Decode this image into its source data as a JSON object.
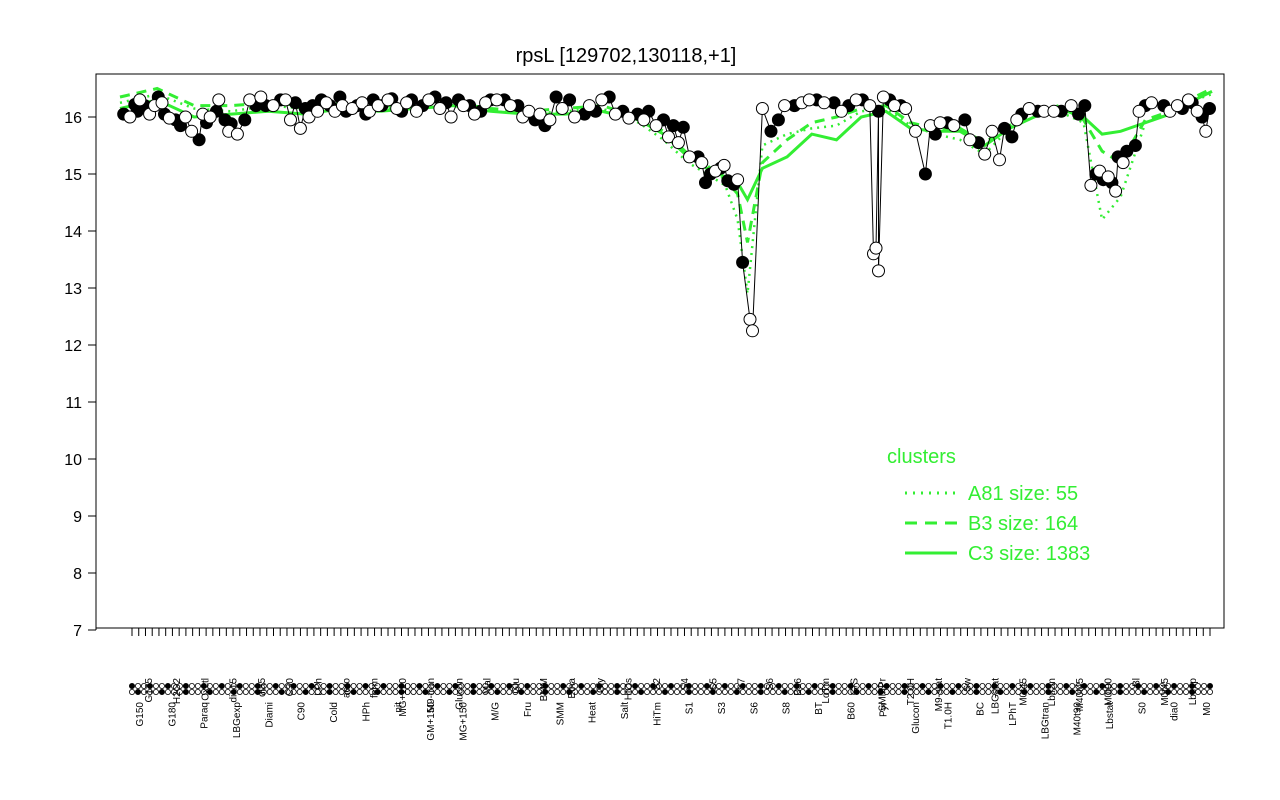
{
  "chart_data": {
    "type": "line",
    "title": "rpsL [129702,130118,+1]",
    "xlabel": "",
    "ylabel": "",
    "ylim": [
      7,
      16.6
    ],
    "y_ticks": [
      7,
      8,
      9,
      10,
      11,
      12,
      13,
      14,
      15,
      16
    ],
    "grid": false,
    "legend": {
      "title": "clusters",
      "placement": "bottom-right",
      "color": "#33ee33",
      "entries": [
        {
          "label": "A81 size: 55",
          "style": "dotted"
        },
        {
          "label": "B3 size: 164",
          "style": "dashed"
        },
        {
          "label": "C3 size: 1383",
          "style": "solid"
        }
      ]
    },
    "x_tick_labels_top": [
      "G135",
      "H2O2",
      "Oxctl",
      "dia15",
      "dia5",
      "C30",
      "LPh",
      "aero",
      "ferm",
      "MG+120",
      "M9-tran",
      "Glucon",
      "Mal",
      "Glu",
      "BMM",
      "Etha",
      "Gly",
      "HiOs",
      "S2",
      "S4",
      "S5",
      "S7",
      "S6",
      "B36",
      "LoTm",
      "G/S",
      "SMMPr",
      "T2.0H",
      "M9-stat",
      "Sw",
      "LBGstat",
      "M0t45",
      "Lbtran",
      "M40t45",
      "M0t90",
      "Bl",
      "M0t45",
      "Lbexp"
    ],
    "x_tick_labels_bottom": [
      "G150",
      "G180",
      "Paraq",
      "LBGexp",
      "Diami",
      "C90",
      "Cold",
      "HPh",
      "nit",
      "GM+150",
      "MG+150",
      "M/G",
      "Fru",
      "SMM",
      "Heat",
      "Salt",
      "HiTm",
      "S1",
      "S3",
      "S6",
      "S8",
      "BT",
      "B60",
      "Pyr",
      "Glucon",
      "T1.0H",
      "BC",
      "LPhT",
      "LBGtran",
      "M40t90",
      "Lbstat",
      "S0",
      "dia0",
      "M0"
    ],
    "series": [
      {
        "name": "",
        "marker": "filled",
        "values": [
          [
            3,
            16.05
          ],
          [
            12,
            16.22
          ],
          [
            14,
            16.1
          ],
          [
            20,
            16.2
          ],
          [
            31,
            16.35
          ],
          [
            36,
            16.05
          ],
          [
            45,
            15.95
          ],
          [
            49,
            15.85
          ],
          [
            64,
            15.6
          ],
          [
            70,
            15.9
          ],
          [
            78,
            16.1
          ],
          [
            85,
            15.95
          ],
          [
            90,
            15.88
          ],
          [
            101,
            15.95
          ],
          [
            110,
            16.2
          ],
          [
            118,
            16.2
          ],
          [
            130,
            16.3
          ],
          [
            142,
            16.25
          ],
          [
            150,
            16.15
          ],
          [
            156,
            16.2
          ],
          [
            163,
            16.3
          ],
          [
            170,
            16.2
          ],
          [
            178,
            16.35
          ],
          [
            183,
            16.1
          ],
          [
            192,
            16.2
          ],
          [
            199,
            16.05
          ],
          [
            205,
            16.3
          ],
          [
            212,
            16.2
          ],
          [
            220,
            16.32
          ],
          [
            228,
            16.1
          ],
          [
            236,
            16.3
          ],
          [
            245,
            16.2
          ],
          [
            255,
            16.35
          ],
          [
            264,
            16.25
          ],
          [
            274,
            16.3
          ],
          [
            283,
            16.2
          ],
          [
            292,
            16.1
          ],
          [
            300,
            16.3
          ],
          [
            311,
            16.3
          ],
          [
            322,
            16.2
          ],
          [
            336,
            15.95
          ],
          [
            344,
            15.85
          ],
          [
            353,
            16.35
          ],
          [
            364,
            16.3
          ],
          [
            376,
            16.05
          ],
          [
            385,
            16.1
          ],
          [
            396,
            16.35
          ],
          [
            407,
            16.1
          ],
          [
            419,
            16.05
          ],
          [
            428,
            16.1
          ],
          [
            440,
            15.95
          ],
          [
            448,
            15.85
          ],
          [
            456,
            15.82
          ],
          [
            468,
            15.3
          ],
          [
            474,
            14.85
          ],
          [
            478,
            15.0
          ],
          [
            486,
            15.1
          ],
          [
            492,
            14.88
          ],
          [
            497,
            14.82
          ],
          [
            504,
            13.45
          ],
          [
            527,
            15.75
          ],
          [
            533,
            15.95
          ],
          [
            546,
            16.2
          ],
          [
            564,
            16.3
          ],
          [
            578,
            16.25
          ],
          [
            590,
            16.2
          ],
          [
            601,
            16.3
          ],
          [
            614,
            16.1
          ],
          [
            623,
            16.3
          ],
          [
            632,
            16.2
          ],
          [
            652,
            15.0
          ],
          [
            660,
            15.7
          ],
          [
            670,
            15.9
          ],
          [
            684,
            15.95
          ],
          [
            695,
            15.55
          ],
          [
            716,
            15.8
          ],
          [
            722,
            15.65
          ],
          [
            730,
            16.05
          ],
          [
            743,
            16.1
          ],
          [
            762,
            16.1
          ],
          [
            776,
            16.05
          ],
          [
            781,
            16.2
          ],
          [
            790,
            15.0
          ],
          [
            796,
            14.9
          ],
          [
            803,
            14.85
          ],
          [
            808,
            15.3
          ],
          [
            815,
            15.4
          ],
          [
            822,
            15.5
          ],
          [
            830,
            16.2
          ],
          [
            845,
            16.2
          ],
          [
            860,
            16.15
          ],
          [
            868,
            16.25
          ],
          [
            876,
            16.0
          ],
          [
            882,
            16.15
          ]
        ]
      },
      {
        "name": "",
        "marker": "open",
        "values": [
          [
            8,
            16.0
          ],
          [
            16,
            16.3
          ],
          [
            24,
            16.05
          ],
          [
            28,
            16.2
          ],
          [
            34,
            16.25
          ],
          [
            40,
            15.98
          ],
          [
            53,
            16.0
          ],
          [
            58,
            15.75
          ],
          [
            67,
            16.05
          ],
          [
            73,
            16.0
          ],
          [
            80,
            16.3
          ],
          [
            88,
            15.75
          ],
          [
            95,
            15.7
          ],
          [
            105,
            16.3
          ],
          [
            114,
            16.35
          ],
          [
            124,
            16.2
          ],
          [
            134,
            16.3
          ],
          [
            138,
            15.95
          ],
          [
            146,
            15.8
          ],
          [
            153,
            16.0
          ],
          [
            160,
            16.1
          ],
          [
            167,
            16.25
          ],
          [
            174,
            16.1
          ],
          [
            180,
            16.2
          ],
          [
            188,
            16.15
          ],
          [
            196,
            16.25
          ],
          [
            202,
            16.1
          ],
          [
            209,
            16.2
          ],
          [
            217,
            16.3
          ],
          [
            224,
            16.15
          ],
          [
            232,
            16.25
          ],
          [
            240,
            16.1
          ],
          [
            250,
            16.3
          ],
          [
            259,
            16.15
          ],
          [
            268,
            16.0
          ],
          [
            278,
            16.2
          ],
          [
            287,
            16.05
          ],
          [
            296,
            16.25
          ],
          [
            305,
            16.3
          ],
          [
            316,
            16.2
          ],
          [
            326,
            16.0
          ],
          [
            331,
            16.1
          ],
          [
            340,
            16.05
          ],
          [
            348,
            15.95
          ],
          [
            358,
            16.15
          ],
          [
            368,
            16.0
          ],
          [
            380,
            16.2
          ],
          [
            390,
            16.3
          ],
          [
            401,
            16.05
          ],
          [
            412,
            15.98
          ],
          [
            424,
            15.95
          ],
          [
            434,
            15.85
          ],
          [
            444,
            15.65
          ],
          [
            452,
            15.55
          ],
          [
            461,
            15.3
          ],
          [
            471,
            15.2
          ],
          [
            482,
            15.05
          ],
          [
            489,
            15.15
          ],
          [
            500,
            14.9
          ],
          [
            510,
            12.45
          ],
          [
            512,
            12.25
          ],
          [
            520,
            16.15
          ],
          [
            538,
            16.2
          ],
          [
            552,
            16.25
          ],
          [
            558,
            16.3
          ],
          [
            570,
            16.25
          ],
          [
            584,
            16.1
          ],
          [
            596,
            16.3
          ],
          [
            607,
            16.2
          ],
          [
            618,
            16.35
          ],
          [
            627,
            16.2
          ],
          [
            636,
            16.15
          ],
          [
            644,
            15.75
          ],
          [
            656,
            15.85
          ],
          [
            664,
            15.9
          ],
          [
            675,
            15.85
          ],
          [
            688,
            15.6
          ],
          [
            700,
            15.35
          ],
          [
            706,
            15.75
          ],
          [
            712,
            15.25
          ],
          [
            726,
            15.95
          ],
          [
            736,
            16.15
          ],
          [
            748,
            16.1
          ],
          [
            756,
            16.1
          ],
          [
            770,
            16.2
          ],
          [
            786,
            14.8
          ],
          [
            793,
            15.05
          ],
          [
            800,
            14.95
          ],
          [
            806,
            14.7
          ],
          [
            812,
            15.2
          ],
          [
            825,
            16.1
          ],
          [
            835,
            16.25
          ],
          [
            850,
            16.1
          ],
          [
            856,
            16.2
          ],
          [
            865,
            16.3
          ],
          [
            872,
            16.1
          ],
          [
            879,
            15.75
          ]
        ]
      },
      {
        "name": "",
        "marker": "open-y",
        "values": [
          [
            610,
            13.6
          ],
          [
            612,
            13.7
          ],
          [
            614,
            13.3
          ]
        ]
      }
    ],
    "cluster_lines": {
      "C3": [
        [
          0,
          16.15
        ],
        [
          30,
          16.3
        ],
        [
          60,
          16.0
        ],
        [
          90,
          16.05
        ],
        [
          120,
          16.1
        ],
        [
          150,
          16.05
        ],
        [
          180,
          16.15
        ],
        [
          210,
          16.1
        ],
        [
          240,
          16.15
        ],
        [
          270,
          16.2
        ],
        [
          300,
          16.1
        ],
        [
          330,
          16.05
        ],
        [
          360,
          16.05
        ],
        [
          390,
          16.1
        ],
        [
          420,
          15.95
        ],
        [
          440,
          15.7
        ],
        [
          460,
          15.3
        ],
        [
          475,
          15.1
        ],
        [
          490,
          14.95
        ],
        [
          500,
          14.85
        ],
        [
          508,
          14.55
        ],
        [
          520,
          15.1
        ],
        [
          540,
          15.3
        ],
        [
          560,
          15.7
        ],
        [
          580,
          15.6
        ],
        [
          600,
          16.0
        ],
        [
          620,
          16.1
        ],
        [
          640,
          15.8
        ],
        [
          660,
          15.75
        ],
        [
          680,
          15.75
        ],
        [
          700,
          15.5
        ],
        [
          720,
          15.8
        ],
        [
          740,
          16.0
        ],
        [
          760,
          16.15
        ],
        [
          780,
          16.0
        ],
        [
          795,
          15.7
        ],
        [
          810,
          15.75
        ],
        [
          830,
          15.9
        ],
        [
          850,
          16.05
        ],
        [
          870,
          16.3
        ],
        [
          884,
          16.45
        ]
      ],
      "B3": [
        [
          0,
          16.35
        ],
        [
          30,
          16.5
        ],
        [
          60,
          16.2
        ],
        [
          90,
          16.2
        ],
        [
          120,
          16.25
        ],
        [
          150,
          16.2
        ],
        [
          180,
          16.25
        ],
        [
          210,
          16.2
        ],
        [
          240,
          16.2
        ],
        [
          270,
          16.25
        ],
        [
          300,
          16.15
        ],
        [
          330,
          16.1
        ],
        [
          360,
          16.15
        ],
        [
          390,
          16.2
        ],
        [
          420,
          16.0
        ],
        [
          440,
          15.75
        ],
        [
          460,
          15.35
        ],
        [
          475,
          15.15
        ],
        [
          490,
          14.9
        ],
        [
          500,
          14.65
        ],
        [
          508,
          13.8
        ],
        [
          520,
          15.2
        ],
        [
          540,
          15.6
        ],
        [
          560,
          15.9
        ],
        [
          580,
          16.0
        ],
        [
          600,
          16.15
        ],
        [
          620,
          16.2
        ],
        [
          640,
          15.9
        ],
        [
          660,
          15.8
        ],
        [
          680,
          15.8
        ],
        [
          700,
          15.55
        ],
        [
          720,
          15.85
        ],
        [
          740,
          16.05
        ],
        [
          760,
          16.2
        ],
        [
          780,
          15.95
        ],
        [
          795,
          15.4
        ],
        [
          810,
          15.2
        ],
        [
          830,
          15.95
        ],
        [
          850,
          16.1
        ],
        [
          870,
          16.35
        ],
        [
          884,
          16.5
        ]
      ],
      "A81": [
        [
          0,
          16.25
        ],
        [
          30,
          16.4
        ],
        [
          60,
          16.15
        ],
        [
          90,
          16.1
        ],
        [
          120,
          16.2
        ],
        [
          150,
          16.15
        ],
        [
          180,
          16.2
        ],
        [
          210,
          16.15
        ],
        [
          240,
          16.15
        ],
        [
          270,
          16.2
        ],
        [
          300,
          16.1
        ],
        [
          330,
          16.05
        ],
        [
          360,
          16.1
        ],
        [
          390,
          16.15
        ],
        [
          420,
          15.9
        ],
        [
          440,
          15.6
        ],
        [
          460,
          15.2
        ],
        [
          475,
          15.0
        ],
        [
          490,
          14.8
        ],
        [
          500,
          14.2
        ],
        [
          508,
          12.9
        ],
        [
          520,
          15.5
        ],
        [
          540,
          15.7
        ],
        [
          560,
          15.8
        ],
        [
          580,
          15.85
        ],
        [
          600,
          16.1
        ],
        [
          620,
          16.15
        ],
        [
          640,
          15.85
        ],
        [
          660,
          15.7
        ],
        [
          680,
          15.6
        ],
        [
          700,
          15.35
        ],
        [
          720,
          15.8
        ],
        [
          740,
          16.0
        ],
        [
          760,
          16.1
        ],
        [
          780,
          15.9
        ],
        [
          795,
          14.2
        ],
        [
          810,
          14.6
        ],
        [
          830,
          15.9
        ],
        [
          850,
          16.05
        ],
        [
          870,
          16.3
        ],
        [
          884,
          16.4
        ]
      ]
    }
  }
}
